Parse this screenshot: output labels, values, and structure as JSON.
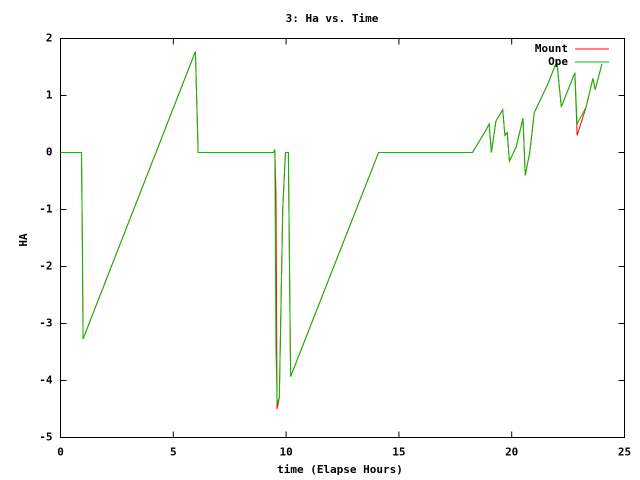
{
  "chart_data": {
    "type": "line",
    "title": "3: Ha vs. Time",
    "x_label": "time (Elapse Hours)",
    "y_label": "HA",
    "x": [
      0,
      0.93,
      0.97,
      1.0,
      5.98,
      6.1,
      9.44,
      9.5,
      9.55,
      9.6,
      9.7,
      9.85,
      9.97,
      10.1,
      10.2,
      14.1,
      18.26,
      18.8,
      19.0,
      19.1,
      19.3,
      19.6,
      19.7,
      19.8,
      19.9,
      20.2,
      20.5,
      20.6,
      20.8,
      21.0,
      21.6,
      22.0,
      22.2,
      22.6,
      22.8,
      22.9,
      23.3,
      23.6,
      23.7,
      24.0
    ],
    "series": [
      {
        "name": "Mount",
        "color": "#ff0000",
        "values": [
          0,
          0,
          -1.6,
          -3.27,
          1.77,
          0,
          0,
          0.05,
          -0.7,
          -4.5,
          -4.3,
          -1.0,
          0,
          0,
          -3.93,
          0,
          0,
          0.35,
          0.5,
          0.0,
          0.55,
          0.75,
          0.3,
          0.35,
          -0.15,
          0.1,
          0.6,
          -0.4,
          0.0,
          0.7,
          1.2,
          1.6,
          0.8,
          1.2,
          1.4,
          0.3,
          0.8,
          1.3,
          1.1,
          1.55
        ]
      },
      {
        "name": "Ope",
        "color": "#00c000",
        "values": [
          0,
          0,
          -1.6,
          -3.27,
          1.77,
          0,
          0,
          0.05,
          -3.4,
          -4.4,
          -4.3,
          -1.0,
          0,
          0,
          -3.93,
          0,
          0,
          0.35,
          0.5,
          0.0,
          0.55,
          0.75,
          0.3,
          0.35,
          -0.15,
          0.1,
          0.6,
          -0.4,
          0.0,
          0.7,
          1.2,
          1.6,
          0.8,
          1.2,
          1.4,
          0.5,
          0.8,
          1.3,
          1.1,
          1.55
        ]
      }
    ],
    "xlim": [
      0,
      25
    ],
    "xticks": [
      0,
      5,
      10,
      15,
      20,
      25
    ],
    "ylim": [
      -5,
      2
    ],
    "yticks": [
      -5,
      -4,
      -3,
      -2,
      -1,
      0,
      1,
      2
    ],
    "grid": false,
    "legend": "top-right"
  }
}
